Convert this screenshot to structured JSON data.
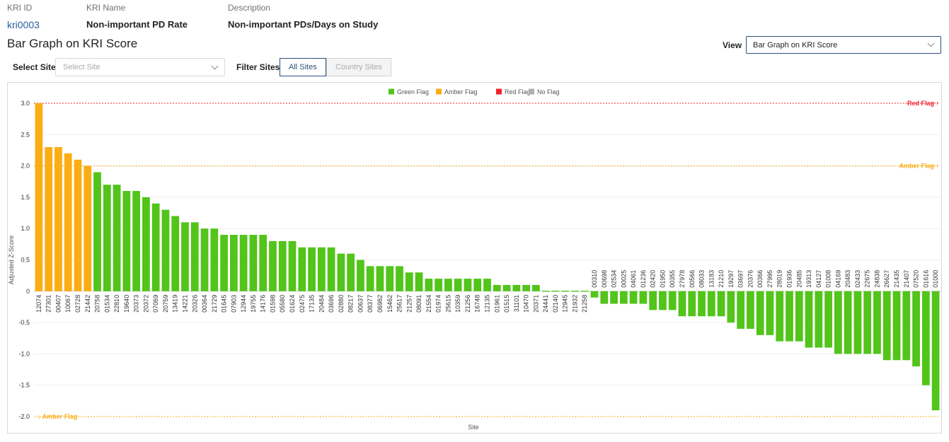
{
  "header": {
    "kri_id_label": "KRI ID",
    "kri_id": "kri0003",
    "kri_name_label": "KRI Name",
    "kri_name": "Non-important PD Rate",
    "description_label": "Description",
    "description": "Non-important PDs/Days on Study"
  },
  "page_title": "Bar Graph on KRI Score",
  "view": {
    "label": "View",
    "selected": "Bar Graph on KRI Score"
  },
  "filters": {
    "select_site_label": "Select Site",
    "select_site_placeholder": "Select Site",
    "filter_sites_label": "Filter Sites",
    "options": [
      "All Sites",
      "Country Sites"
    ],
    "active": "All Sites"
  },
  "colors": {
    "green": "#52c41a",
    "amber": "#faad14",
    "red": "#f5222d",
    "none": "#b0b0b0",
    "accent": "#2b4f7a",
    "link": "#2b5f9e"
  },
  "chart_data": {
    "type": "bar",
    "xlabel": "Site",
    "ylabel": "Adjusted Z-Score",
    "ylim": [
      -2.0,
      3.0
    ],
    "yticks": [
      "3.0",
      "2.5",
      "2.0",
      "1.5",
      "1.0",
      "0.5",
      "0",
      "-0.5",
      "-1.0",
      "-1.5",
      "-2.0"
    ],
    "grid": true,
    "legend_position": "top-center",
    "legend": [
      {
        "name": "Green Flag",
        "color": "#52c41a"
      },
      {
        "name": "Amber Flag",
        "color": "#faad14"
      },
      {
        "name": "Red Flag",
        "color": "#f5222d"
      },
      {
        "name": "No Flag",
        "color": "#b0b0b0"
      }
    ],
    "thresholds": [
      {
        "label": "Red Flag ↑",
        "value": 3.0,
        "color": "#f5222d",
        "style": "dotted"
      },
      {
        "label": "Amber Flag ↑",
        "value": 2.0,
        "color": "#faad14",
        "style": "dotted"
      },
      {
        "label": "↓ Amber Flag",
        "value": -2.0,
        "color": "#faad14",
        "style": "dotted"
      }
    ],
    "categories": [
      "12074",
      "27301",
      "00407",
      "10067",
      "02728",
      "21442",
      "20758",
      "01534",
      "22810",
      "19640",
      "20373",
      "20372",
      "07069",
      "20759",
      "13419",
      "14221",
      "20326",
      "00364",
      "21729",
      "01645",
      "07903",
      "12944",
      "19755",
      "14176",
      "01598",
      "05580",
      "01624",
      "02475",
      "17135",
      "20484",
      "03696",
      "02880",
      "08217",
      "00637",
      "08377",
      "06982",
      "15462",
      "25617",
      "21257",
      "08091",
      "21554",
      "01974",
      "25615",
      "10359",
      "21256",
      "16748",
      "12135",
      "01961",
      "01515",
      "31101",
      "10470",
      "20371",
      "24441",
      "02140",
      "12945",
      "21932",
      "21258",
      "00310",
      "00698",
      "02534",
      "00025",
      "04061",
      "01236",
      "02420",
      "01950",
      "00355",
      "27978",
      "00566",
      "08033",
      "13183",
      "21210",
      "19297",
      "03697",
      "20376",
      "00366",
      "27995",
      "28019",
      "01936",
      "20485",
      "19313",
      "04127",
      "01008",
      "04169",
      "20483",
      "02433",
      "22675",
      "24838",
      "26627",
      "21435",
      "21407",
      "07520",
      "01616",
      "01000"
    ],
    "values": [
      3.0,
      2.3,
      2.3,
      2.2,
      2.1,
      2.0,
      1.9,
      1.7,
      1.7,
      1.6,
      1.6,
      1.5,
      1.4,
      1.3,
      1.2,
      1.1,
      1.1,
      1.0,
      1.0,
      0.9,
      0.9,
      0.9,
      0.9,
      0.9,
      0.8,
      0.8,
      0.8,
      0.7,
      0.7,
      0.7,
      0.7,
      0.6,
      0.6,
      0.5,
      0.4,
      0.4,
      0.4,
      0.4,
      0.3,
      0.3,
      0.2,
      0.2,
      0.2,
      0.2,
      0.2,
      0.2,
      0.2,
      0.1,
      0.1,
      0.1,
      0.1,
      0.1,
      0.01,
      0.01,
      0.01,
      0.01,
      0.01,
      -0.1,
      -0.2,
      -0.2,
      -0.2,
      -0.2,
      -0.2,
      -0.3,
      -0.3,
      -0.3,
      -0.4,
      -0.4,
      -0.4,
      -0.4,
      -0.4,
      -0.5,
      -0.6,
      -0.6,
      -0.7,
      -0.7,
      -0.8,
      -0.8,
      -0.8,
      -0.9,
      -0.9,
      -0.9,
      -1.0,
      -1.0,
      -1.0,
      -1.0,
      -1.0,
      -1.1,
      -1.1,
      -1.1,
      -1.2,
      -1.5,
      -1.9
    ],
    "flags": [
      "amber",
      "amber",
      "amber",
      "amber",
      "amber",
      "amber",
      "green",
      "green",
      "green",
      "green",
      "green",
      "green",
      "green",
      "green",
      "green",
      "green",
      "green",
      "green",
      "green",
      "green",
      "green",
      "green",
      "green",
      "green",
      "green",
      "green",
      "green",
      "green",
      "green",
      "green",
      "green",
      "green",
      "green",
      "green",
      "green",
      "green",
      "green",
      "green",
      "green",
      "green",
      "green",
      "green",
      "green",
      "green",
      "green",
      "green",
      "green",
      "green",
      "green",
      "green",
      "green",
      "green",
      "green",
      "green",
      "green",
      "green",
      "green",
      "green",
      "green",
      "green",
      "green",
      "green",
      "green",
      "green",
      "green",
      "green",
      "green",
      "green",
      "green",
      "green",
      "green",
      "green",
      "green",
      "green",
      "green",
      "green",
      "green",
      "green",
      "green",
      "green",
      "green",
      "green",
      "green",
      "green",
      "green",
      "green",
      "green",
      "green",
      "green",
      "green",
      "green",
      "green",
      "green"
    ]
  }
}
